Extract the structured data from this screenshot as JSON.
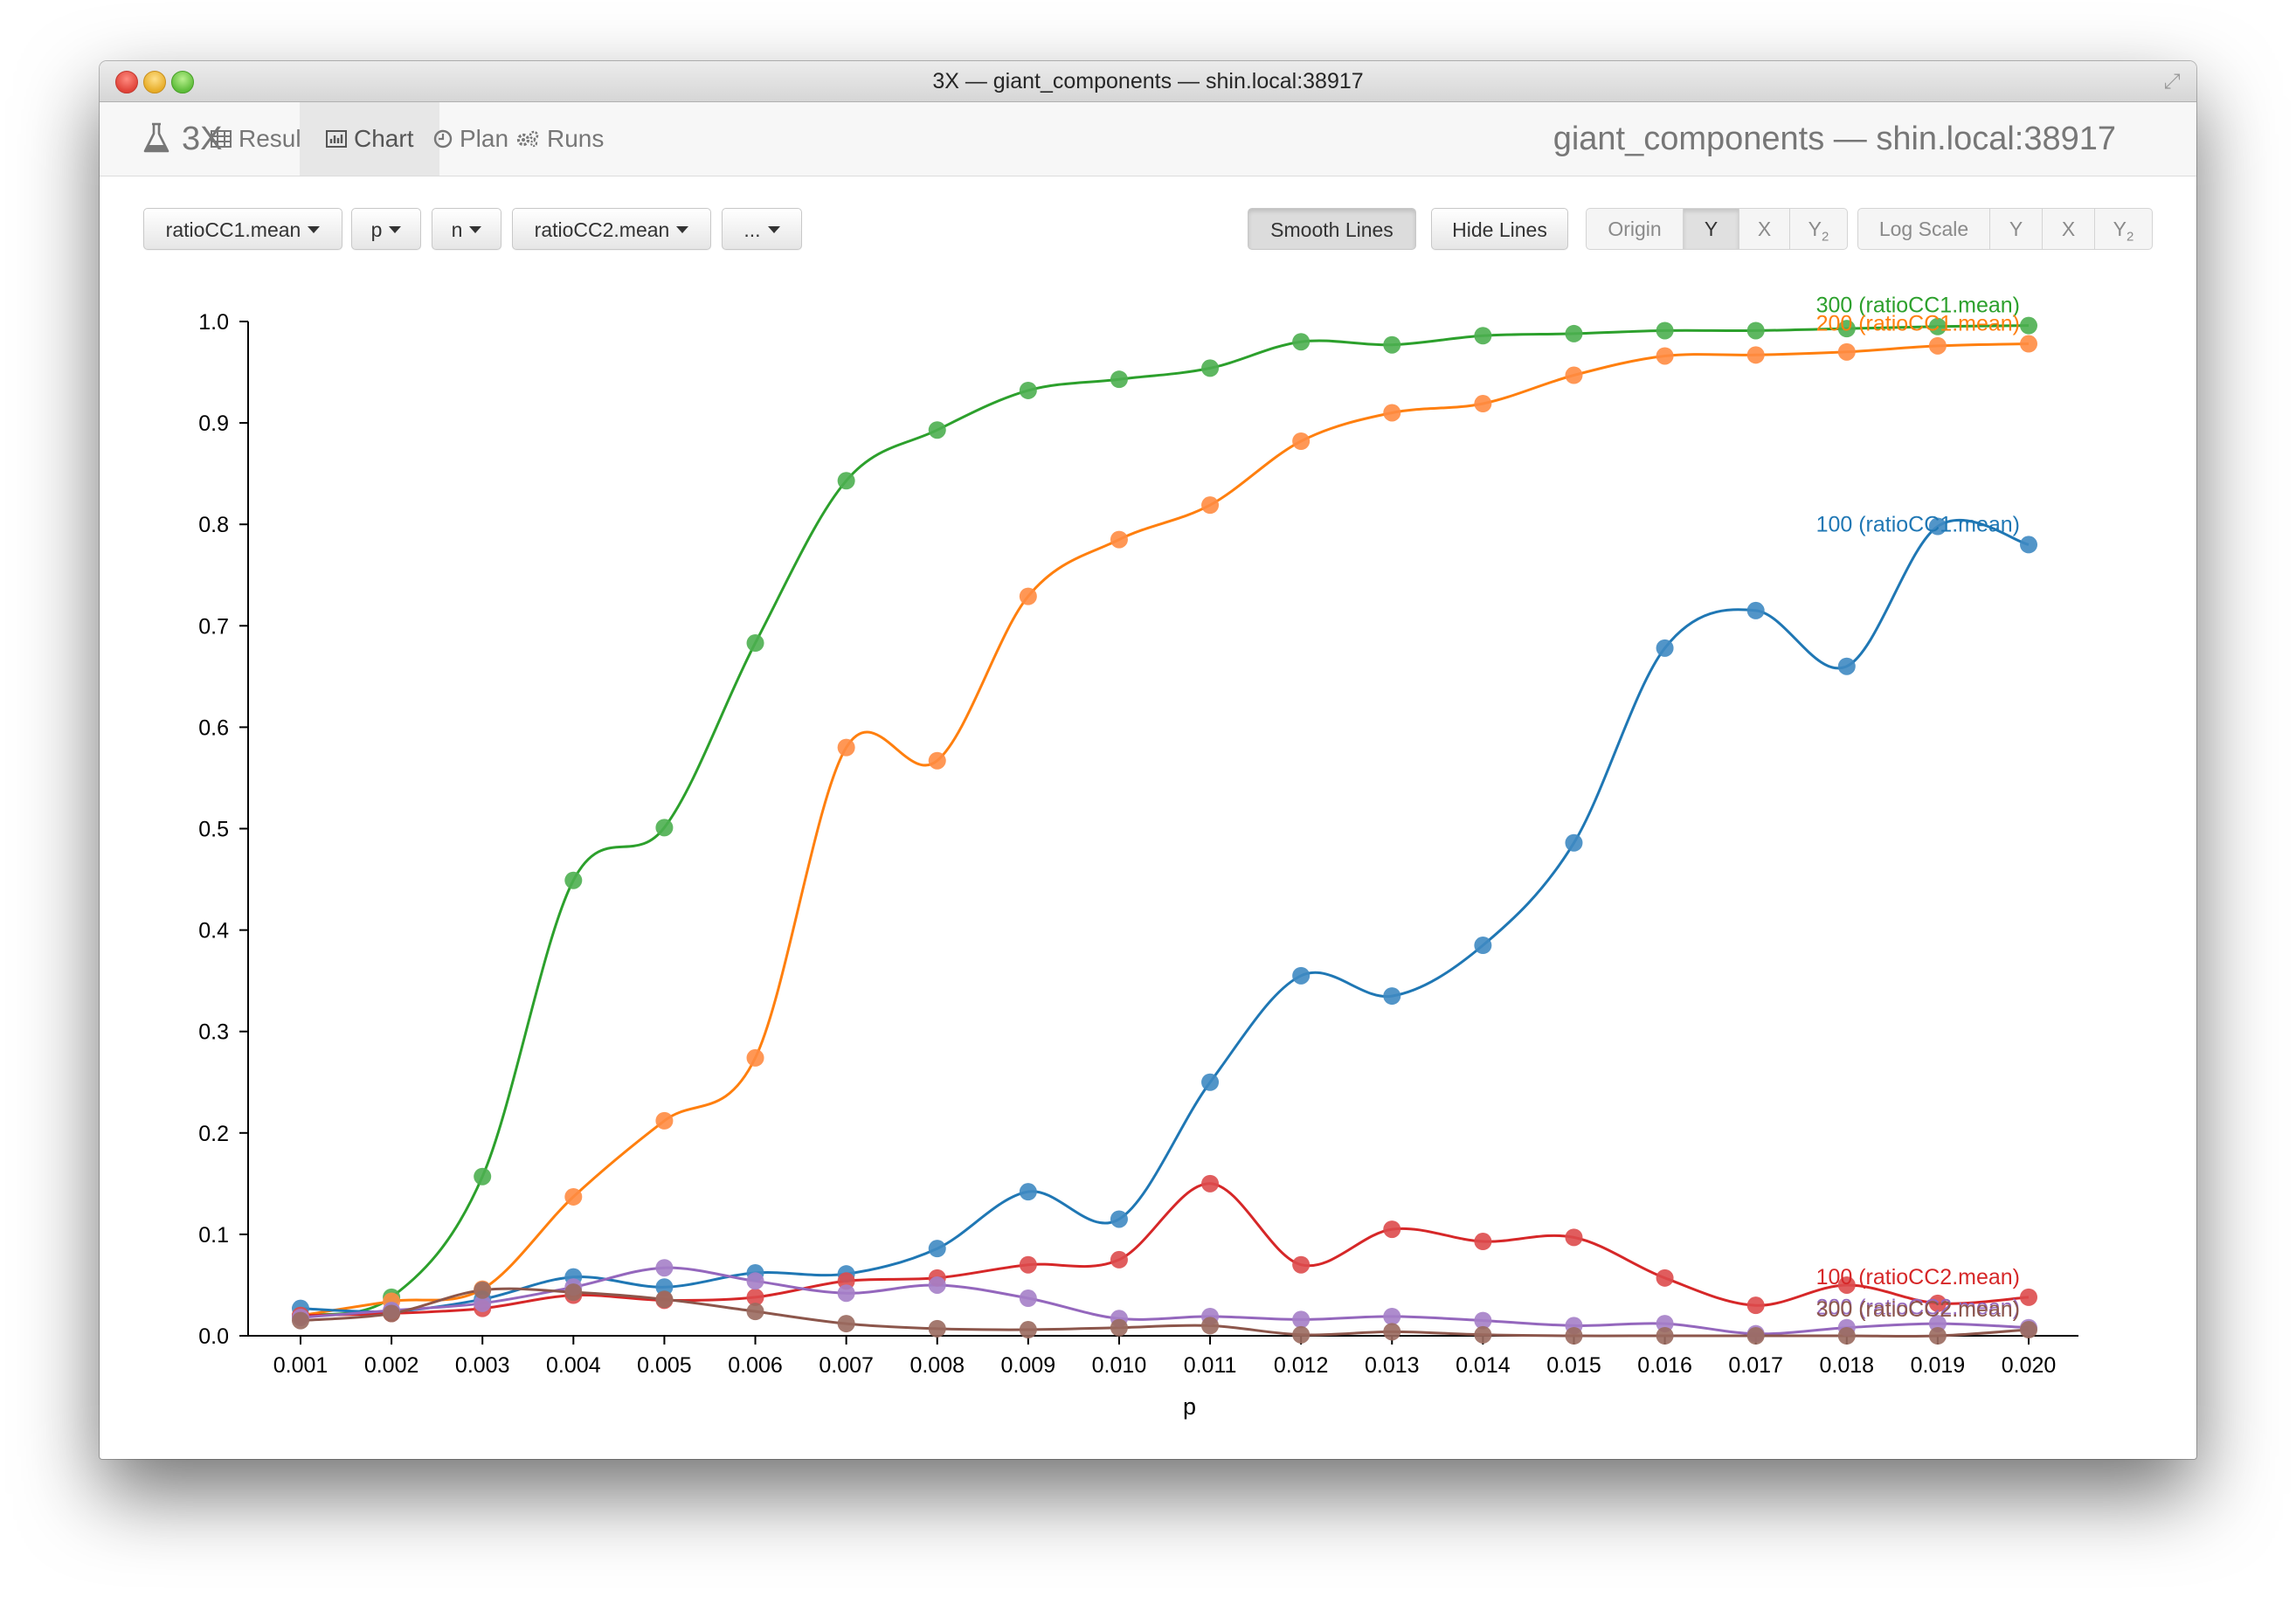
{
  "window": {
    "title": "3X — giant_components — shin.local:38917"
  },
  "navbar": {
    "brand": "3X",
    "tabs": [
      {
        "label": "Results"
      },
      {
        "label": "Chart"
      },
      {
        "label": "Plan"
      },
      {
        "label": "Runs"
      }
    ],
    "active_tab": "Chart",
    "right_title": "giant_components — shin.local:38917"
  },
  "toolbar": {
    "dropdowns": [
      "ratioCC1.mean",
      "p",
      "n",
      "ratioCC2.mean",
      "..."
    ],
    "smooth_lines": "Smooth Lines",
    "hide_lines": "Hide Lines",
    "origin": {
      "label": "Origin",
      "options": [
        "Y",
        "X",
        "Y2"
      ],
      "selected": "Y"
    },
    "log_scale": {
      "label": "Log Scale",
      "options": [
        "Y",
        "X",
        "Y2"
      ],
      "selected": ""
    }
  },
  "chart_data": {
    "type": "line",
    "smooth": true,
    "markers": true,
    "xlabel": "p",
    "ylabel": "",
    "x": [
      0.001,
      0.002,
      0.003,
      0.004,
      0.005,
      0.006,
      0.007,
      0.008,
      0.009,
      0.01,
      0.011,
      0.012,
      0.013,
      0.014,
      0.015,
      0.016,
      0.017,
      0.018,
      0.019,
      0.02
    ],
    "x_tick_labels": [
      "0.001",
      "0.002",
      "0.003",
      "0.004",
      "0.005",
      "0.006",
      "0.007",
      "0.008",
      "0.009",
      "0.010",
      "0.011",
      "0.012",
      "0.013",
      "0.014",
      "0.015",
      "0.016",
      "0.017",
      "0.018",
      "0.019",
      "0.020"
    ],
    "ylim": [
      0,
      1.0
    ],
    "y_ticks": [
      "0.0",
      "0.1",
      "0.2",
      "0.3",
      "0.4",
      "0.5",
      "0.6",
      "0.7",
      "0.8",
      "0.9",
      "1.0"
    ],
    "grid": false,
    "legend": "labels at end of lines",
    "series": [
      {
        "name": "300 (ratioCC1.mean)",
        "color": "#2ca02c",
        "marker_color": "#4caf50",
        "values": [
          0.02,
          0.038,
          0.157,
          0.449,
          0.501,
          0.683,
          0.843,
          0.893,
          0.932,
          0.943,
          0.954,
          0.98,
          0.977,
          0.986,
          0.988,
          0.991,
          0.991,
          0.993,
          0.995,
          0.996
        ]
      },
      {
        "name": "200 (ratioCC1.mean)",
        "color": "#ff7f0e",
        "marker_color": "#ff8c42",
        "values": [
          0.02,
          0.034,
          0.046,
          0.137,
          0.212,
          0.274,
          0.58,
          0.567,
          0.729,
          0.785,
          0.819,
          0.882,
          0.91,
          0.919,
          0.947,
          0.966,
          0.967,
          0.97,
          0.976,
          0.978
        ]
      },
      {
        "name": "100 (ratioCC1.mean)",
        "color": "#1f77b4",
        "marker_color": "#3f89c2",
        "values": [
          0.027,
          0.024,
          0.036,
          0.058,
          0.048,
          0.062,
          0.061,
          0.086,
          0.142,
          0.115,
          0.25,
          0.355,
          0.335,
          0.385,
          0.486,
          0.678,
          0.715,
          0.66,
          0.798,
          0.78
        ]
      },
      {
        "name": "100 (ratioCC2.mean)",
        "color": "#d62728",
        "marker_color": "#dd4b4c",
        "values": [
          0.02,
          0.022,
          0.027,
          0.04,
          0.035,
          0.038,
          0.054,
          0.057,
          0.07,
          0.075,
          0.15,
          0.07,
          0.105,
          0.093,
          0.097,
          0.057,
          0.03,
          0.05,
          0.032,
          0.038
        ]
      },
      {
        "name": "200 (ratioCC2.mean)",
        "color": "#9467bd",
        "marker_color": "#a57fc8",
        "values": [
          0.018,
          0.025,
          0.032,
          0.048,
          0.067,
          0.054,
          0.042,
          0.05,
          0.037,
          0.017,
          0.019,
          0.016,
          0.019,
          0.015,
          0.01,
          0.012,
          0.002,
          0.008,
          0.012,
          0.008
        ]
      },
      {
        "name": "300 (ratioCC2.mean)",
        "color": "#8c564b",
        "marker_color": "#9a6a5f",
        "values": [
          0.015,
          0.022,
          0.045,
          0.043,
          0.036,
          0.024,
          0.012,
          0.007,
          0.006,
          0.008,
          0.01,
          0.001,
          0.004,
          0.001,
          0.0,
          0.0,
          0.0,
          0.0,
          0.0,
          0.006
        ]
      }
    ]
  }
}
